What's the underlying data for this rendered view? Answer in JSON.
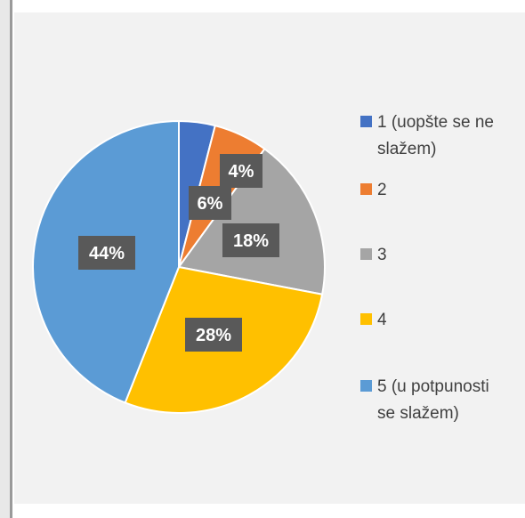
{
  "chart_data": {
    "type": "pie",
    "title": "",
    "categories": [
      "1 (uopšte se ne slažem)",
      "2",
      "3",
      "4",
      "5 (u potpunosti se slažem)"
    ],
    "values": [
      4,
      6,
      18,
      28,
      44
    ],
    "data_labels": [
      "4%",
      "6%",
      "18%",
      "28%",
      "44%"
    ],
    "colors": [
      "#4472c4",
      "#ed7d31",
      "#a5a5a5",
      "#ffc000",
      "#5b9bd5"
    ],
    "legend": {
      "position": "right",
      "entries": [
        [
          "1 (uopšte se ne",
          "slažem)"
        ],
        [
          "2"
        ],
        [
          "3"
        ],
        [
          "4"
        ],
        [
          "5 (u potpunosti",
          "se slažem)"
        ]
      ]
    },
    "data_label_box_color": "#595959"
  }
}
